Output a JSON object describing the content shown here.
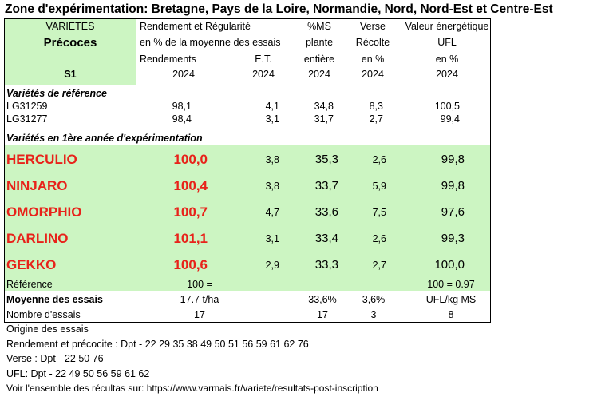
{
  "title": "Zone d'expérimentation: Bretagne, Pays de la Loire, Normandie, Nord, Nord-Est et Centre-Est",
  "header": {
    "varietes": "VARIETES",
    "precoces": "Précoces",
    "s1": "S1",
    "rend_l1": "Rendement et Régularité",
    "rend_l2": "en % de la moyenne des essais",
    "rend_l3": "Rendements",
    "rend_l4": "2024",
    "et_l3": "E.T.",
    "et_l4": "2024",
    "ms_l1": "%MS",
    "ms_l2": "plante",
    "ms_l3": "entière",
    "ms_l4": "2024",
    "verse_l1": "Verse",
    "verse_l2": "Récolte",
    "verse_l3": "en %",
    "verse_l4": "2024",
    "ufl_l1": "Valeur énergétique",
    "ufl_l2": "UFL",
    "ufl_l3": "en %",
    "ufl_l4": "2024"
  },
  "reference_section": {
    "label": "Variétés de référence",
    "rows": [
      {
        "name": "LG31259",
        "rendement": "98,1",
        "et": "4,1",
        "ms": "34,8",
        "verse": "8,3",
        "ufl": "100,5"
      },
      {
        "name": "LG31277",
        "rendement": "98,4",
        "et": "3,1",
        "ms": "31,7",
        "verse": "2,7",
        "ufl": "99,4"
      }
    ]
  },
  "new_section": {
    "label": "Variétés en 1ère année d'expérimentation",
    "rows": [
      {
        "name": "HERCULIO",
        "rendement": "100,0",
        "et": "3,8",
        "ms": "35,3",
        "verse": "2,6",
        "ufl": "99,8"
      },
      {
        "name": "NINJARO",
        "rendement": "100,4",
        "et": "3,8",
        "ms": "33,7",
        "verse": "5,9",
        "ufl": "99,8"
      },
      {
        "name": "OMORPHIO",
        "rendement": "100,7",
        "et": "4,7",
        "ms": "33,6",
        "verse": "7,5",
        "ufl": "97,6"
      },
      {
        "name": "DARLINO",
        "rendement": "101,1",
        "et": "3,1",
        "ms": "33,4",
        "verse": "2,6",
        "ufl": "99,3"
      },
      {
        "name": "GEKKO",
        "rendement": "100,6",
        "et": "2,9",
        "ms": "33,3",
        "verse": "2,7",
        "ufl": "100,0"
      }
    ]
  },
  "summary": {
    "reference_label": "Référence",
    "reference_rend": "100 =",
    "reference_ufl": "100 = 0.97",
    "moyenne_label": "Moyenne des essais",
    "moyenne_rend": "17.7 t/ha",
    "moyenne_ms": "33,6%",
    "moyenne_verse": "3,6%",
    "moyenne_ufl": "UFL/kg MS",
    "nombre_label": "Nombre d'essais",
    "nombre_rend": "17",
    "nombre_ms": "17",
    "nombre_verse": "3",
    "nombre_ufl": "8"
  },
  "footer": {
    "origine": "Origine des essais",
    "rendement": "Rendement et précocite : Dpt - 22 29 35 38 49 50 51 56 59 61 62 76",
    "verse": "Verse : Dpt - 22 50 76",
    "ufl": "UFL: Dpt - 22 49 50 56 59 61 62",
    "voir": "Voir l'ensemble des récultas sur: https://www.varmais.fr/variete/resultats-post-inscription"
  },
  "colors": {
    "highlight_green": "#ccf5c2",
    "variety_red": "#e8221a"
  }
}
